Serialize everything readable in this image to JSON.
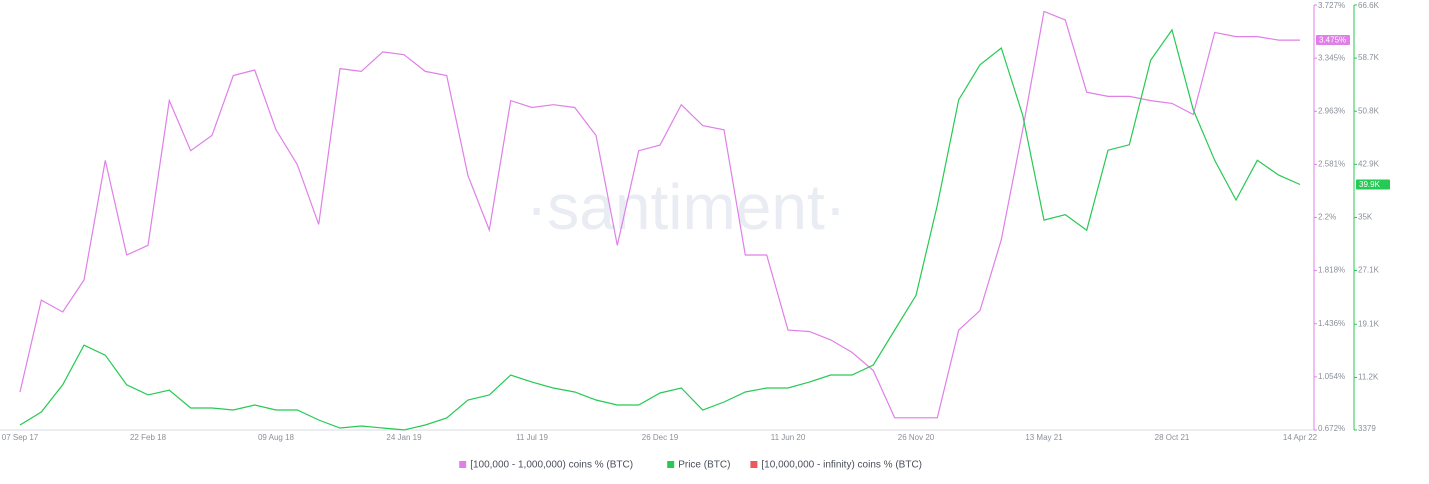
{
  "chart_data": {
    "type": "line",
    "watermark": "·santiment·",
    "categories": [
      "07 Sep 17",
      null,
      null,
      null,
      null,
      null,
      "22 Feb 18",
      null,
      null,
      null,
      null,
      null,
      "09 Aug 18",
      null,
      null,
      null,
      null,
      null,
      "24 Jan 19",
      null,
      null,
      null,
      null,
      null,
      "11 Jul 19",
      null,
      null,
      null,
      null,
      null,
      "26 Dec 19",
      null,
      null,
      null,
      null,
      null,
      "11 Jun 20",
      null,
      null,
      null,
      null,
      null,
      "26 Nov 20",
      null,
      null,
      null,
      null,
      null,
      "13 May 21",
      null,
      null,
      null,
      null,
      null,
      "28 Oct 21",
      null,
      null,
      null,
      null,
      null,
      "14 Apr 22"
    ],
    "series": [
      {
        "name": "[100,000 - 1,000,000) coins % (BTC)",
        "color": "#e07fe8",
        "axis": "y",
        "values": [
          0.945,
          1.606,
          1.52,
          1.75,
          2.61,
          1.93,
          2.0,
          3.04,
          2.68,
          2.79,
          3.22,
          3.26,
          2.83,
          2.58,
          2.15,
          3.27,
          3.25,
          3.39,
          3.37,
          3.25,
          3.22,
          2.5,
          2.11,
          3.04,
          2.99,
          3.01,
          2.99,
          2.79,
          2.0,
          2.68,
          2.72,
          3.01,
          2.86,
          2.83,
          1.93,
          1.93,
          1.39,
          1.38,
          1.32,
          1.23,
          1.1,
          0.76,
          0.76,
          0.76,
          1.39,
          1.53,
          2.04,
          2.83,
          3.68,
          3.62,
          3.1,
          3.07,
          3.07,
          3.04,
          3.02,
          2.94,
          3.53,
          3.5,
          3.5,
          3.475,
          3.475
        ],
        "value_labels": [
          null,
          null,
          null,
          null,
          null,
          null,
          null,
          null,
          null,
          null,
          null,
          null,
          null,
          null,
          null,
          null,
          null,
          null,
          null,
          null,
          null,
          null,
          null,
          null,
          null,
          null,
          null,
          null,
          null,
          null,
          null,
          null,
          null,
          null,
          null,
          null,
          null,
          null,
          null,
          null,
          null,
          null,
          null,
          null,
          null,
          null,
          null,
          null,
          null,
          null,
          null,
          null,
          null,
          null,
          null,
          null,
          null,
          null,
          null,
          null,
          "3.475%"
        ]
      },
      {
        "name": "Price (BTC)",
        "color": "#26c953",
        "axis": "y2",
        "values": [
          4120,
          6050,
          10100,
          16000,
          14500,
          10100,
          8600,
          9300,
          6650,
          6650,
          6350,
          7100,
          6350,
          6350,
          4860,
          3680,
          3980,
          3680,
          3400,
          4120,
          5160,
          7840,
          8580,
          11560,
          10500,
          9620,
          9030,
          7840,
          7100,
          7100,
          8880,
          9620,
          6350,
          7540,
          9030,
          9620,
          9620,
          10500,
          11560,
          11560,
          13050,
          18250,
          23400,
          36800,
          52500,
          57700,
          60200,
          50200,
          34600,
          35400,
          33100,
          45000,
          45800,
          58400,
          62900,
          51000,
          43500,
          37600,
          43500,
          41300,
          39900
        ],
        "value_labels": [
          null,
          null,
          null,
          null,
          null,
          null,
          null,
          null,
          null,
          null,
          null,
          null,
          null,
          null,
          null,
          null,
          null,
          null,
          null,
          null,
          null,
          null,
          null,
          null,
          null,
          null,
          null,
          null,
          null,
          null,
          null,
          null,
          null,
          null,
          null,
          null,
          null,
          null,
          null,
          null,
          null,
          null,
          null,
          null,
          null,
          null,
          null,
          null,
          null,
          null,
          null,
          null,
          null,
          null,
          null,
          null,
          null,
          null,
          null,
          null,
          "39.9K"
        ]
      },
      {
        "name": "[10,000,000 - infinity) coins % (BTC)",
        "color": "#f0575d",
        "axis": "y",
        "values": [
          null,
          null,
          null,
          null,
          null,
          null,
          null,
          null,
          null,
          null,
          null,
          null,
          null,
          null,
          null,
          null,
          null,
          null,
          null,
          null,
          null,
          null,
          null,
          null,
          null,
          null,
          null,
          null,
          null,
          null,
          null,
          null,
          null,
          null,
          null,
          null,
          null,
          null,
          null,
          null,
          null,
          null,
          null,
          null,
          null,
          null,
          null,
          null,
          null,
          null,
          null,
          null,
          null,
          null,
          null,
          null,
          null,
          null,
          null,
          null,
          null
        ]
      }
    ],
    "ylim": [
      0.672,
      3.727
    ],
    "yticks": [
      {
        "value": 0.672,
        "label": "0.672%"
      },
      {
        "value": 1.054,
        "label": "1.054%"
      },
      {
        "value": 1.436,
        "label": "1.436%"
      },
      {
        "value": 1.818,
        "label": "1.818%"
      },
      {
        "value": 2.2,
        "label": "2.2%"
      },
      {
        "value": 2.581,
        "label": "2.581%"
      },
      {
        "value": 2.963,
        "label": "2.963%"
      },
      {
        "value": 3.345,
        "label": "3.345%"
      },
      {
        "value": 3.727,
        "label": "3.727%"
      }
    ],
    "y2lim": [
      3379,
      66600
    ],
    "y2ticks": [
      3379,
      {
        "value": 11200,
        "label": "11.2K"
      },
      {
        "value": 19100,
        "label": "19.1K"
      },
      {
        "value": 27100,
        "label": "27.1K"
      },
      {
        "value": 35000,
        "label": "35K"
      },
      {
        "value": 42900,
        "label": "42.9K"
      },
      {
        "value": 50800,
        "label": "50.8K"
      },
      {
        "value": 58700,
        "label": "58.7K"
      },
      {
        "value": 66600,
        "label": "66.6K"
      }
    ]
  }
}
